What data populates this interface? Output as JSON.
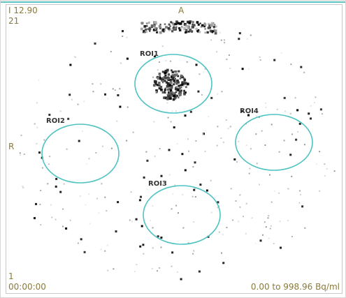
{
  "overlay": {
    "top_left": [
      "I 12.90",
      "21"
    ],
    "top_center": "A",
    "left_center": "R",
    "bottom_left": [
      "1",
      "00:00:00"
    ],
    "bottom_right": "0.00 to 998.96 Bq/ml"
  },
  "rois": [
    {
      "label": "ROI1"
    },
    {
      "label": "ROI2"
    },
    {
      "label": "ROI3"
    },
    {
      "label": "ROI4"
    }
  ]
}
